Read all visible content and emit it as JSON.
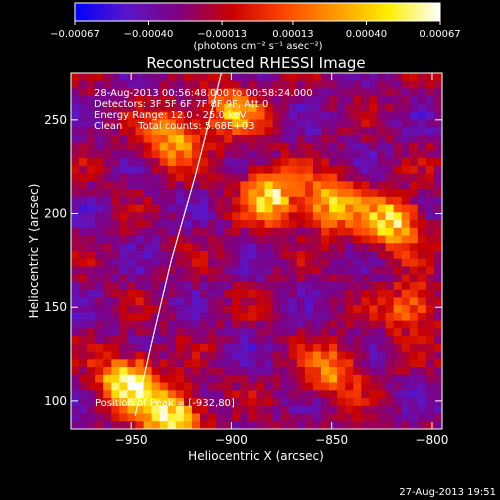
{
  "chart_data": {
    "type": "heatmap",
    "title": "Reconstructed RHESSI Image",
    "xlabel": "Heliocentric X (arcsec)",
    "ylabel": "Heliocentric Y (arcsec)",
    "xlim": [
      -980,
      -795
    ],
    "ylim": [
      85,
      275
    ],
    "xticks": [
      -950,
      -900,
      -850,
      -800
    ],
    "xtick_labels": [
      "−950",
      "−900",
      "−850",
      "−800"
    ],
    "yticks": [
      100,
      150,
      200,
      250
    ],
    "ytick_labels": [
      "100",
      "150",
      "200",
      "250"
    ],
    "colormap": "hot-metal (blue-purple-red-orange-yellow-white)",
    "colorbar": {
      "range": [
        -0.00067,
        0.00067
      ],
      "ticks": [
        -0.00067,
        -0.0004,
        -0.00013,
        0.00013,
        0.0004,
        0.00067
      ],
      "tick_labels": [
        "−0.00067",
        "−0.00040",
        "−0.00013",
        "0.00013",
        "0.00040",
        "0.00067"
      ],
      "units_label": "(photons cm⁻² s⁻¹ asec⁻²)",
      "colors": [
        "#0000ff",
        "#5a16c8",
        "#800080",
        "#c80000",
        "#ff4400",
        "#ff9900",
        "#ffee00",
        "#ffffff"
      ]
    },
    "annotations": [
      "28-Aug-2013 00:56:48.000 to 00:58:24.000",
      "Detectors: 3F 5F 6F 7F 8F 9F, Att 0",
      "Energy Range: 12.0 - 25.0 keV",
      "Clean     Total counts: 5.68E+03"
    ],
    "peak_label": "Position of Peak = [-932,80]",
    "limb_curve": [
      [
        -948,
        92
      ],
      [
        -940,
        130
      ],
      [
        -930,
        175
      ],
      [
        -918,
        220
      ],
      [
        -905,
        275
      ]
    ],
    "bright_regions": [
      {
        "x": -952,
        "y": 110,
        "level": 0.95
      },
      {
        "x": -930,
        "y": 92,
        "level": 1.0
      },
      {
        "x": -880,
        "y": 210,
        "level": 0.9
      },
      {
        "x": -850,
        "y": 205,
        "level": 0.85
      },
      {
        "x": -820,
        "y": 195,
        "level": 0.9
      },
      {
        "x": -900,
        "y": 255,
        "level": 0.75
      },
      {
        "x": -930,
        "y": 240,
        "level": 0.8
      },
      {
        "x": -810,
        "y": 150,
        "level": 0.7
      },
      {
        "x": -850,
        "y": 115,
        "level": 0.7
      }
    ],
    "grid": false
  },
  "footer": {
    "timestamp": "27-Aug-2013 19:51"
  }
}
